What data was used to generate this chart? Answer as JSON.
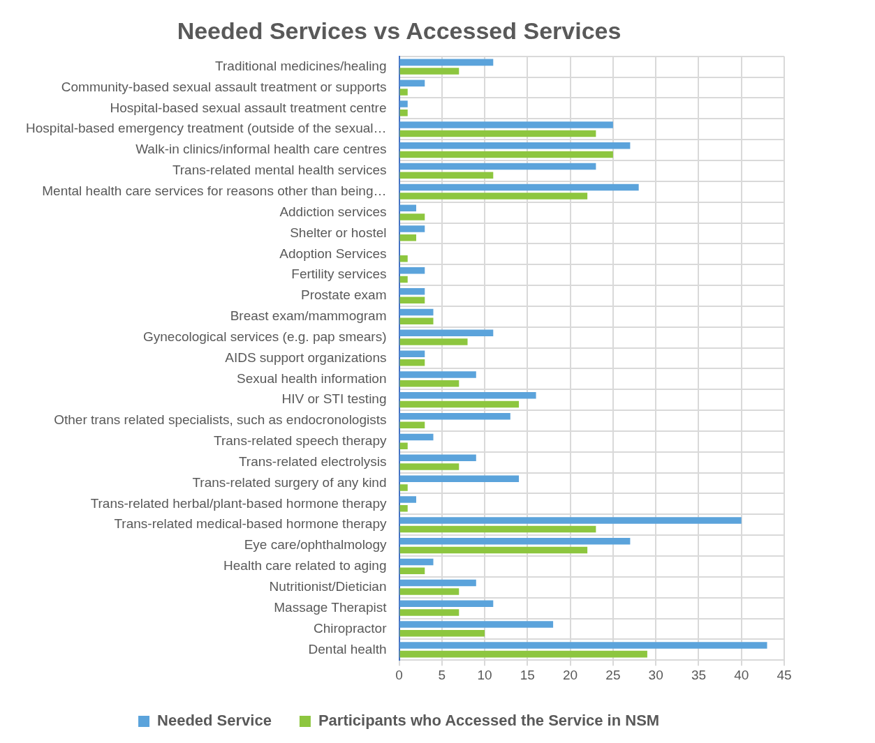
{
  "chart_data": {
    "type": "bar",
    "orientation": "horizontal",
    "title": "Needed Services vs Accessed Services",
    "categories": [
      "Traditional medicines/healing",
      "Community-based sexual assault treatment or supports",
      "Hospital-based sexual assault treatment centre",
      "Hospital-based emergency treatment (outside of the sexual…",
      "Walk-in clinics/informal health care centres",
      "Trans-related mental health services",
      "Mental health care services for reasons other than being…",
      "Addiction services",
      "Shelter or hostel",
      "Adoption Services",
      "Fertility services",
      "Prostate exam",
      "Breast exam/mammogram",
      "Gynecological services (e.g. pap smears)",
      "AIDS support organizations",
      "Sexual health information",
      "HIV or STI testing",
      "Other trans related specialists, such as endocronologists",
      "Trans-related speech therapy",
      "Trans-related electrolysis",
      "Trans-related surgery of any kind",
      "Trans-related herbal/plant-based hormone therapy",
      "Trans-related medical-based hormone therapy",
      "Eye care/ophthalmology",
      "Health care related to aging",
      "Nutritionist/Dietician",
      "Massage Therapist",
      "Chiropractor",
      "Dental health"
    ],
    "series": [
      {
        "name": "Needed Service",
        "color": "#5ba3db",
        "values": [
          11,
          3,
          1,
          25,
          27,
          23,
          28,
          2,
          3,
          0,
          3,
          3,
          4,
          11,
          3,
          9,
          16,
          13,
          4,
          9,
          14,
          2,
          40,
          27,
          4,
          9,
          11,
          18,
          43
        ]
      },
      {
        "name": "Participants who Accessed the Service in NSM",
        "color": "#8dc63f",
        "values": [
          7,
          1,
          1,
          23,
          25,
          11,
          22,
          3,
          2,
          1,
          1,
          3,
          4,
          8,
          3,
          7,
          14,
          3,
          1,
          7,
          1,
          1,
          23,
          22,
          3,
          7,
          7,
          10,
          29
        ]
      }
    ],
    "xlim": [
      0,
      45
    ],
    "xticks": [
      0,
      5,
      10,
      15,
      20,
      25,
      30,
      35,
      40,
      45
    ],
    "grid": true,
    "legend": "bottom"
  }
}
